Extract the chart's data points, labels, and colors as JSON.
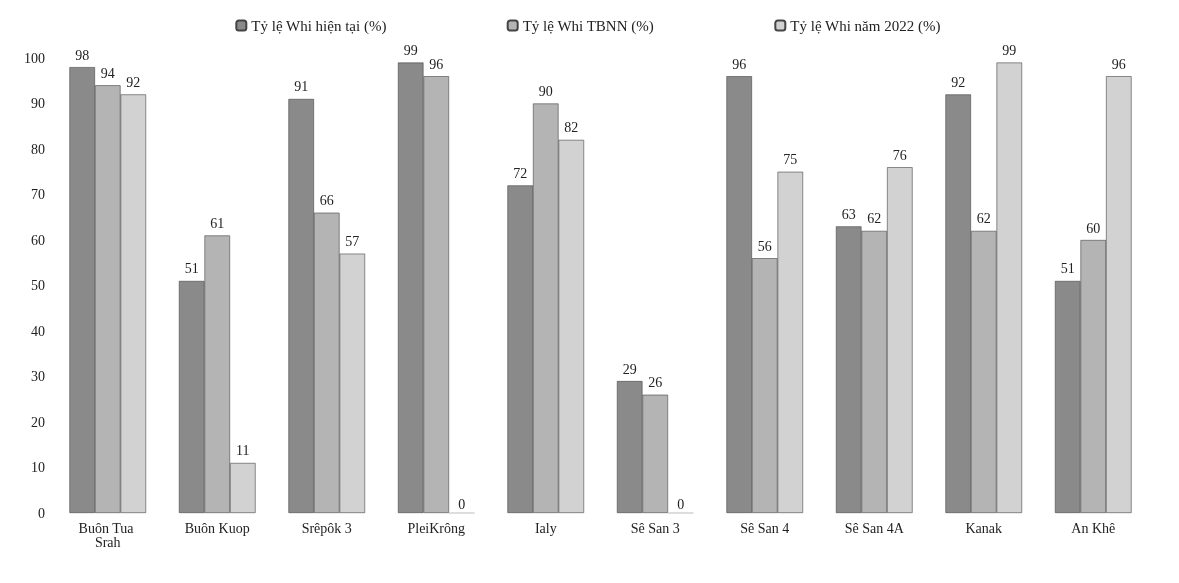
{
  "chart_data": {
    "type": "bar",
    "categories": [
      "Buôn Tua Srah",
      "Buôn Kuop",
      "Srêpôk 3",
      "PleiKrông",
      "Ialy",
      "Sê San 3",
      "Sê San 4",
      "Sê San 4A",
      "Kanak",
      "An Khê"
    ],
    "series": [
      {
        "name": "Tỷ lệ Whi hiện tại (%)",
        "color": "#8a8a8a",
        "values": [
          98,
          51,
          91,
          99,
          72,
          29,
          96,
          63,
          92,
          51
        ]
      },
      {
        "name": "Tỷ lệ Whi TBNN (%)",
        "color": "#b4b4b4",
        "values": [
          94,
          61,
          66,
          96,
          90,
          26,
          56,
          62,
          62,
          60
        ]
      },
      {
        "name": "Tỷ lệ Whi năm 2022 (%)",
        "color": "#d2d2d2",
        "values": [
          92,
          11,
          57,
          0,
          82,
          0,
          75,
          76,
          99,
          96
        ]
      }
    ],
    "ylim": [
      0,
      100
    ],
    "yticks": [
      0,
      10,
      20,
      30,
      40,
      50,
      60,
      70,
      80,
      90,
      100
    ],
    "grid": false,
    "legend": "top",
    "data_labels": true
  }
}
